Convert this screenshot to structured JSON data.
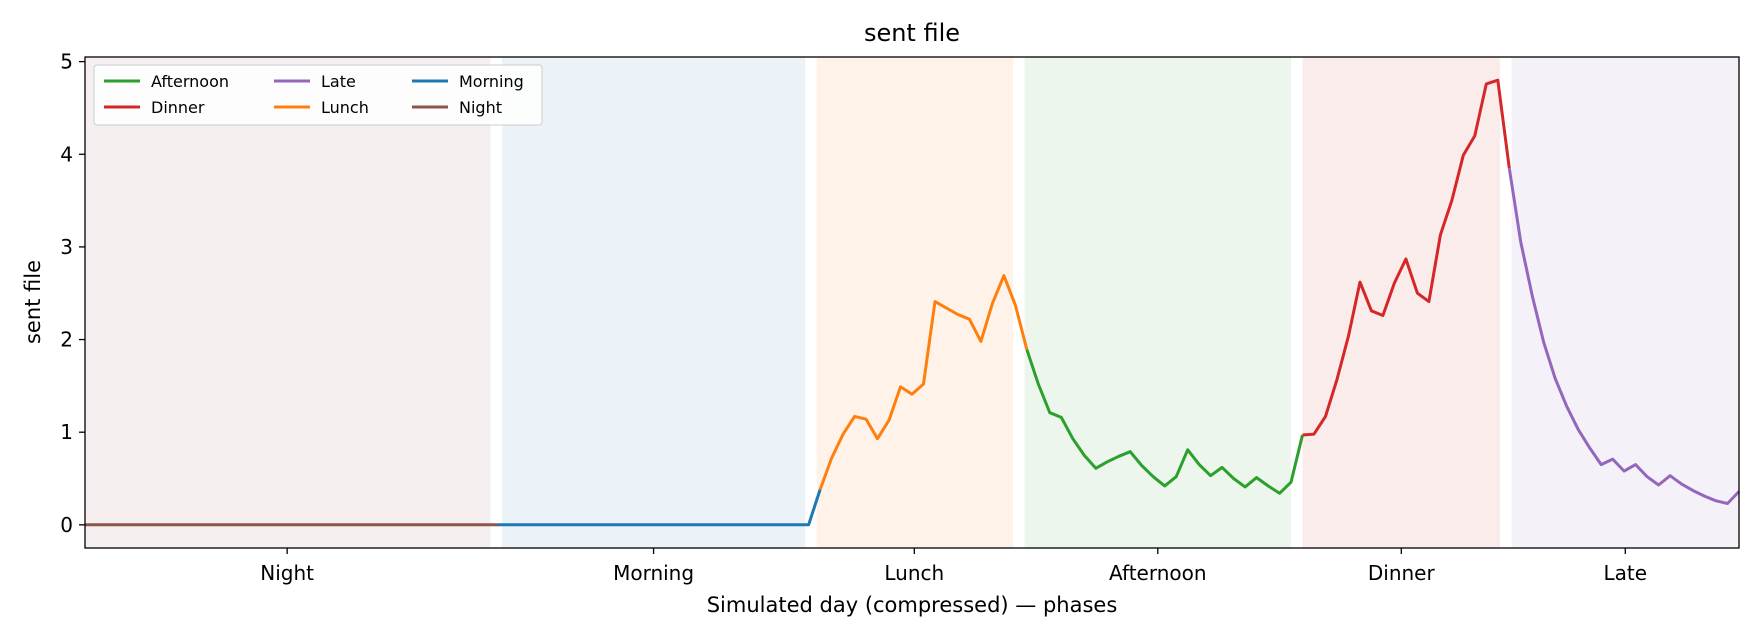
{
  "chart_data": {
    "type": "line",
    "title": "sent file",
    "xlabel": "Simulated day (compressed) — phases",
    "ylabel": "sent file",
    "ylim": [
      -0.25,
      5.05
    ],
    "xlim": [
      0,
      144
    ],
    "yticks": [
      0,
      1,
      2,
      3,
      4,
      5
    ],
    "grid": false,
    "legend": {
      "placement": "top-left",
      "columns": 3,
      "entries": [
        {
          "name": "Afternoon",
          "color": "#2ca02c"
        },
        {
          "name": "Dinner",
          "color": "#d62728"
        },
        {
          "name": "Late",
          "color": "#9467bd"
        },
        {
          "name": "Lunch",
          "color": "#ff7f0e"
        },
        {
          "name": "Morning",
          "color": "#1f77b4"
        },
        {
          "name": "Night",
          "color": "#8c564b"
        }
      ]
    },
    "phases": [
      {
        "name": "Night",
        "start": 0,
        "end": 35.3,
        "color": "#8c564b"
      },
      {
        "name": "Morning",
        "start": 36.3,
        "end": 62.7,
        "color": "#1f77b4"
      },
      {
        "name": "Lunch",
        "start": 63.7,
        "end": 80.8,
        "color": "#ff7f0e"
      },
      {
        "name": "Afternoon",
        "start": 81.8,
        "end": 105,
        "color": "#2ca02c"
      },
      {
        "name": "Dinner",
        "start": 106,
        "end": 123.2,
        "color": "#d62728"
      },
      {
        "name": "Late",
        "start": 124.2,
        "end": 144,
        "color": "#9467bd"
      }
    ],
    "series": [
      {
        "name": "Night",
        "color": "#8c564b",
        "x": [
          0,
          36
        ],
        "y": [
          0,
          0
        ]
      },
      {
        "name": "Morning",
        "color": "#1f77b4",
        "x": [
          36,
          63,
          64
        ],
        "y": [
          0,
          0,
          0.38
        ]
      },
      {
        "name": "Lunch",
        "color": "#ff7f0e",
        "x": [
          64,
          65,
          66,
          67,
          68,
          69,
          70,
          71,
          72,
          73,
          74,
          75,
          76,
          77,
          78,
          79,
          80,
          81,
          82
        ],
        "y": [
          0.38,
          0.72,
          0.98,
          1.17,
          1.14,
          0.93,
          1.13,
          1.49,
          1.41,
          1.52,
          2.41,
          2.34,
          2.27,
          2.22,
          1.98,
          2.39,
          2.69,
          2.37,
          1.89
        ]
      },
      {
        "name": "Afternoon",
        "color": "#2ca02c",
        "x": [
          82,
          83,
          84,
          85,
          86,
          87,
          88,
          89,
          90,
          91,
          92,
          93,
          94,
          95,
          96,
          97,
          98,
          99,
          100,
          101,
          102,
          103,
          104,
          105,
          106
        ],
        "y": [
          1.89,
          1.52,
          1.21,
          1.16,
          0.93,
          0.75,
          0.61,
          0.68,
          0.74,
          0.79,
          0.64,
          0.52,
          0.42,
          0.52,
          0.81,
          0.65,
          0.53,
          0.62,
          0.5,
          0.41,
          0.51,
          0.42,
          0.34,
          0.46,
          0.97
        ]
      },
      {
        "name": "Dinner",
        "color": "#d62728",
        "x": [
          106,
          107,
          108,
          109,
          110,
          111,
          112,
          113,
          114,
          115,
          116,
          117,
          118,
          119,
          120,
          121,
          122,
          123,
          124
        ],
        "y": [
          0.97,
          0.98,
          1.17,
          1.57,
          2.04,
          2.62,
          2.31,
          2.26,
          2.61,
          2.87,
          2.5,
          2.41,
          3.13,
          3.5,
          3.99,
          4.2,
          4.76,
          4.8,
          3.85
        ]
      },
      {
        "name": "Late",
        "color": "#9467bd",
        "x": [
          124,
          125,
          126,
          127,
          128,
          129,
          130,
          131,
          132,
          133,
          134,
          135,
          136,
          137,
          138,
          139,
          140,
          141,
          142,
          143,
          144
        ],
        "y": [
          3.85,
          3.05,
          2.47,
          1.97,
          1.58,
          1.28,
          1.03,
          0.83,
          0.65,
          0.71,
          0.58,
          0.65,
          0.52,
          0.43,
          0.53,
          0.44,
          0.37,
          0.31,
          0.26,
          0.23,
          0.36
        ]
      }
    ],
    "xticks": [
      {
        "label": "Night",
        "x": 17.6
      },
      {
        "label": "Morning",
        "x": 49.5
      },
      {
        "label": "Lunch",
        "x": 72.2
      },
      {
        "label": "Afternoon",
        "x": 93.4
      },
      {
        "label": "Dinner",
        "x": 114.6
      },
      {
        "label": "Late",
        "x": 134.1
      }
    ]
  }
}
